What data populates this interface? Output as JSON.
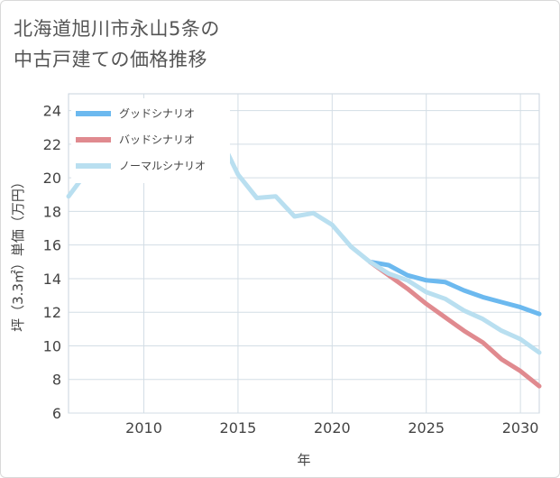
{
  "title_line1": "北海道旭川市永山5条の",
  "title_line2": "中古戸建ての価格推移",
  "chart_data": {
    "type": "line",
    "title": "北海道旭川市永山5条の中古戸建ての価格推移",
    "xlabel": "年",
    "ylabel": "坪（3.3㎡）単価（万円）",
    "xlim": [
      2006,
      2031
    ],
    "ylim": [
      6,
      25
    ],
    "xticks": [
      2010,
      2015,
      2020,
      2025,
      2030
    ],
    "yticks": [
      6,
      8,
      10,
      12,
      14,
      16,
      18,
      20,
      22,
      24
    ],
    "grid": true,
    "legend_position": "top-left",
    "series": [
      {
        "name": "グッドシナリオ",
        "color": "#6cb9ef",
        "x": [
          2022,
          2023,
          2024,
          2025,
          2026,
          2027,
          2028,
          2029,
          2030,
          2031
        ],
        "y": [
          15.0,
          14.8,
          14.2,
          13.9,
          13.8,
          13.3,
          12.9,
          12.6,
          12.3,
          11.9
        ]
      },
      {
        "name": "バッドシナリオ",
        "color": "#e08a8f",
        "x": [
          2022,
          2023,
          2024,
          2025,
          2026,
          2027,
          2028,
          2029,
          2030,
          2031
        ],
        "y": [
          15.0,
          14.2,
          13.4,
          12.5,
          11.7,
          10.9,
          10.2,
          9.2,
          8.5,
          7.6
        ]
      },
      {
        "name": "ノーマルシナリオ",
        "color": "#b9dff0",
        "x": [
          2006,
          2007,
          2008,
          2009,
          2010,
          2011,
          2012,
          2013,
          2014,
          2015,
          2016,
          2017,
          2018,
          2019,
          2020,
          2021,
          2022,
          2023,
          2024,
          2025,
          2026,
          2027,
          2028,
          2029,
          2030,
          2031
        ],
        "y": [
          18.9,
          20.4,
          21.3,
          22.2,
          21.8,
          23.2,
          22.4,
          24.4,
          22.5,
          20.2,
          18.8,
          18.9,
          17.7,
          17.9,
          17.2,
          15.9,
          15.0,
          14.3,
          13.9,
          13.2,
          12.8,
          12.1,
          11.6,
          10.9,
          10.4,
          9.6
        ]
      }
    ]
  }
}
